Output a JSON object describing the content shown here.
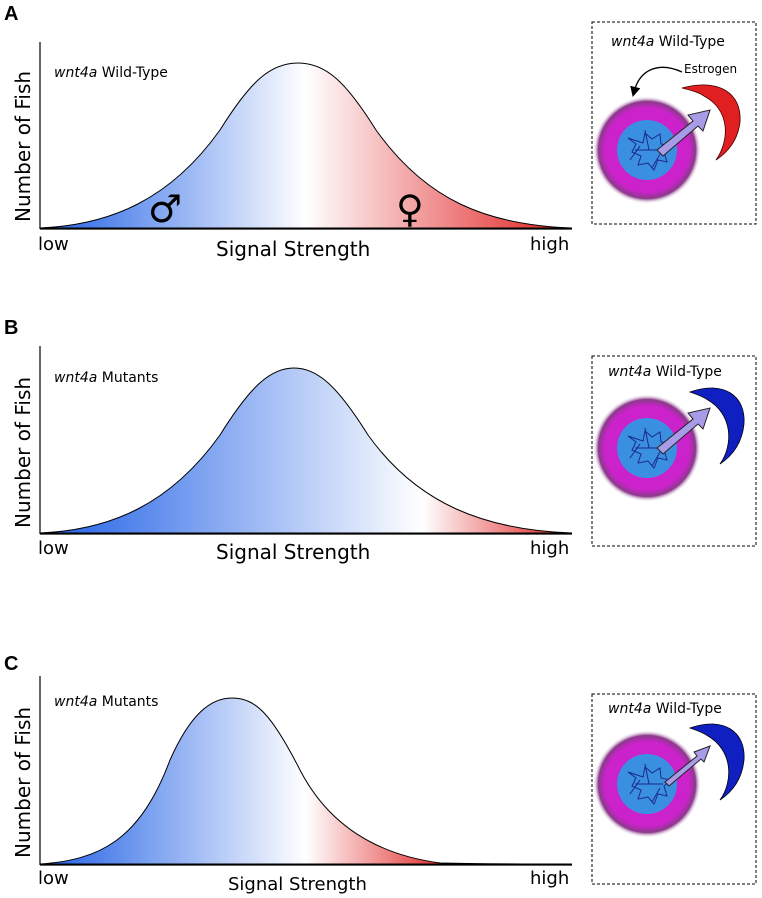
{
  "figure": {
    "panels": [
      {
        "letter": "A",
        "gene": "wnt4a",
        "title_rest": " Wild-Type",
        "ylabel": "Number of Fish",
        "xlabel": "Signal Strength",
        "x_low": "low",
        "x_high": "high",
        "male_symbol": "♂",
        "female_symbol": "♀",
        "inset_gene": "wnt4a",
        "inset_title_rest": " Wild-Type",
        "inset_label": "Estrogen",
        "inset_crescent_color": "#e02020"
      },
      {
        "letter": "B",
        "gene": "wnt4a",
        "title_rest": " Mutants",
        "ylabel": "Number of Fish",
        "xlabel": "Signal Strength",
        "x_low": "low",
        "x_high": "high",
        "inset_gene": "wnt4a",
        "inset_title_rest": " Wild-Type",
        "inset_crescent_color": "#1020c0"
      },
      {
        "letter": "C",
        "gene": "wnt4a",
        "title_rest": " Mutants",
        "ylabel": "Number of Fish",
        "xlabel": "Signal Strength",
        "x_low": "low",
        "x_high": "high",
        "inset_gene": "wnt4a",
        "inset_title_rest": " Wild-Type",
        "inset_crescent_color": "#1020c0"
      }
    ],
    "colors": {
      "male_blue": "#1f64e8",
      "female_red": "#e02020",
      "cell_outer": "#cc22cc",
      "cell_nucleus": "#3b8fe0",
      "arrow_fill": "#a89ce8"
    }
  }
}
